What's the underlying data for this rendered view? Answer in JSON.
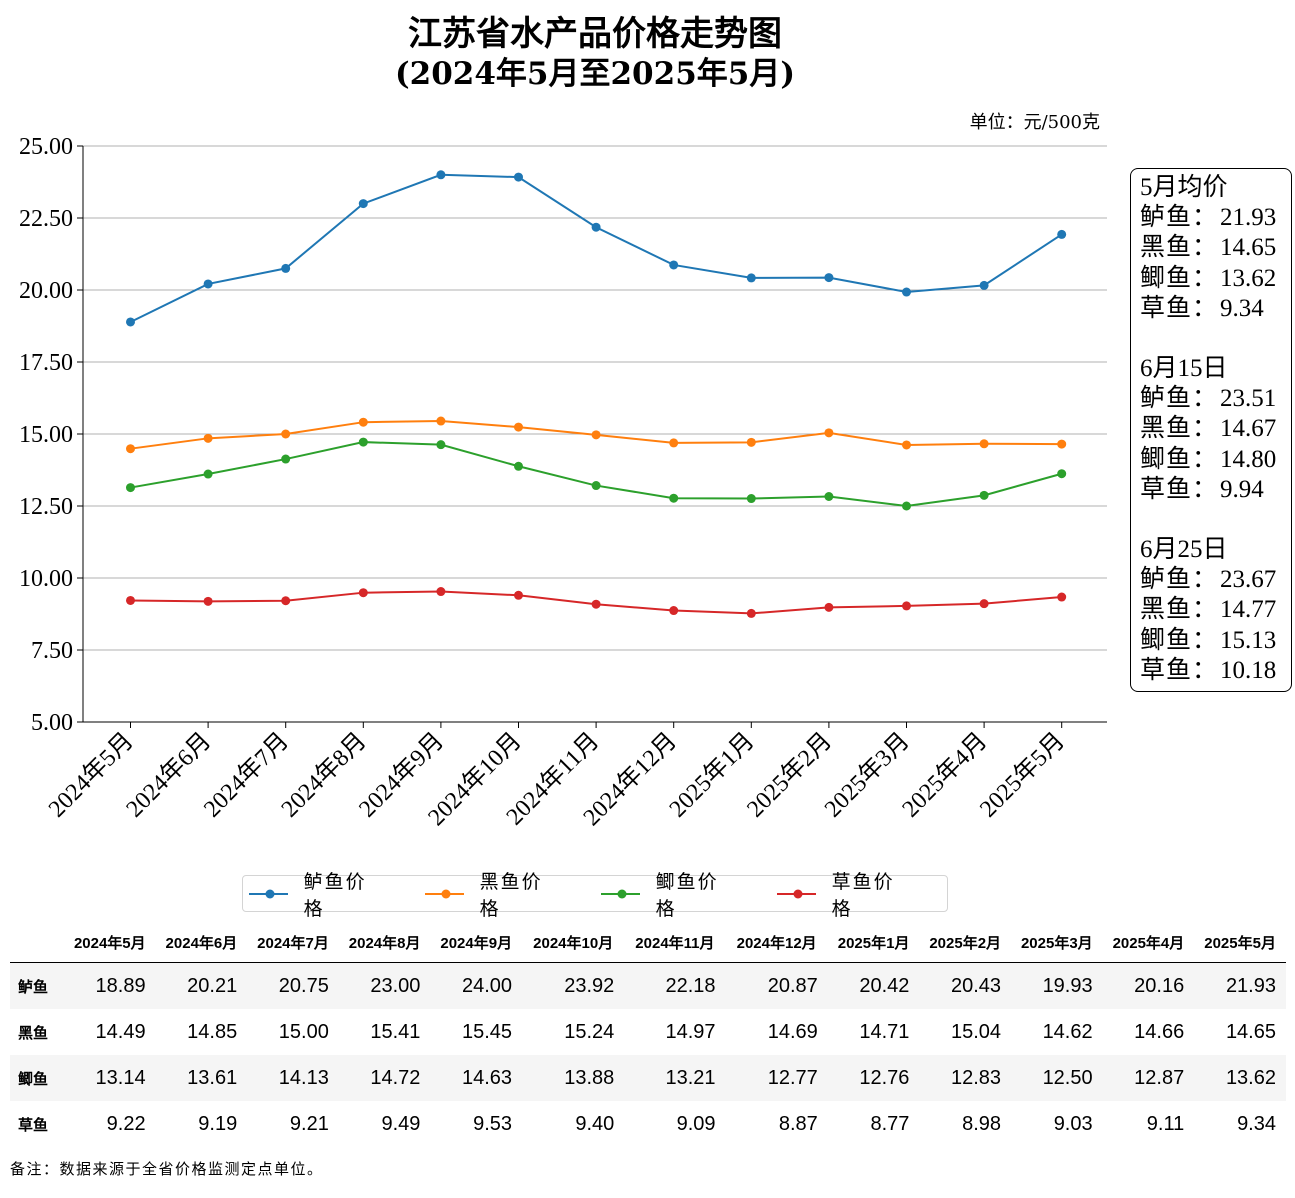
{
  "title": "江苏省水产品价格走势图",
  "subtitle": "(2024年5月至2025年5月)",
  "unit": "单位：元/500克",
  "chart_data": {
    "type": "line",
    "categories": [
      "2024年5月",
      "2024年6月",
      "2024年7月",
      "2024年8月",
      "2024年9月",
      "2024年10月",
      "2024年11月",
      "2024年12月",
      "2025年1月",
      "2025年2月",
      "2025年3月",
      "2025年4月",
      "2025年5月"
    ],
    "ylim": [
      5.0,
      25.0
    ],
    "yticks": [
      "5.00",
      "7.50",
      "10.00",
      "12.50",
      "15.00",
      "17.50",
      "20.00",
      "22.50",
      "25.00"
    ],
    "grid": "horizontal",
    "legend": "bottom-center",
    "series": [
      {
        "name": "鲈鱼价格",
        "color": "#1f77b4",
        "values": [
          18.89,
          20.21,
          20.75,
          23.0,
          24.0,
          23.92,
          22.18,
          20.87,
          20.42,
          20.43,
          19.93,
          20.16,
          21.93
        ]
      },
      {
        "name": "黑鱼价格",
        "color": "#ff7f0e",
        "values": [
          14.49,
          14.85,
          15.0,
          15.41,
          15.45,
          15.24,
          14.97,
          14.69,
          14.71,
          15.04,
          14.62,
          14.66,
          14.65
        ]
      },
      {
        "name": "鲫鱼价格",
        "color": "#2ca02c",
        "values": [
          13.14,
          13.61,
          14.13,
          14.72,
          14.63,
          13.88,
          13.21,
          12.77,
          12.76,
          12.83,
          12.5,
          12.87,
          13.62
        ]
      },
      {
        "name": "草鱼价格",
        "color": "#d62728",
        "values": [
          9.22,
          9.19,
          9.21,
          9.49,
          9.53,
          9.4,
          9.09,
          8.87,
          8.77,
          8.98,
          9.03,
          9.11,
          9.34
        ]
      }
    ]
  },
  "sidebox": {
    "groups": [
      {
        "header": "5月均价",
        "rows": [
          {
            "name": "鲈鱼：",
            "value": "21.93"
          },
          {
            "name": "黑鱼：",
            "value": "14.65"
          },
          {
            "name": "鲫鱼：",
            "value": "13.62"
          },
          {
            "name": "草鱼：",
            "value": "9.34"
          }
        ]
      },
      {
        "header": "6月15日",
        "rows": [
          {
            "name": "鲈鱼：",
            "value": "23.51"
          },
          {
            "name": "黑鱼：",
            "value": "14.67"
          },
          {
            "name": "鲫鱼：",
            "value": "14.80"
          },
          {
            "name": "草鱼：",
            "value": "9.94"
          }
        ]
      },
      {
        "header": "6月25日",
        "rows": [
          {
            "name": "鲈鱼：",
            "value": "23.67"
          },
          {
            "name": "黑鱼：",
            "value": "14.77"
          },
          {
            "name": "鲫鱼：",
            "value": "15.13"
          },
          {
            "name": "草鱼：",
            "value": "10.18"
          }
        ]
      }
    ]
  },
  "table": {
    "columns": [
      "2024年5月",
      "2024年6月",
      "2024年7月",
      "2024年8月",
      "2024年9月",
      "2024年10月",
      "2024年11月",
      "2024年12月",
      "2025年1月",
      "2025年2月",
      "2025年3月",
      "2025年4月",
      "2025年5月"
    ],
    "rows": [
      {
        "name": "鲈鱼",
        "values": [
          "18.89",
          "20.21",
          "20.75",
          "23.00",
          "24.00",
          "23.92",
          "22.18",
          "20.87",
          "20.42",
          "20.43",
          "19.93",
          "20.16",
          "21.93"
        ]
      },
      {
        "name": "黑鱼",
        "values": [
          "14.49",
          "14.85",
          "15.00",
          "15.41",
          "15.45",
          "15.24",
          "14.97",
          "14.69",
          "14.71",
          "15.04",
          "14.62",
          "14.66",
          "14.65"
        ]
      },
      {
        "name": "鲫鱼",
        "values": [
          "13.14",
          "13.61",
          "14.13",
          "14.72",
          "14.63",
          "13.88",
          "13.21",
          "12.77",
          "12.76",
          "12.83",
          "12.50",
          "12.87",
          "13.62"
        ]
      },
      {
        "name": "草鱼",
        "values": [
          "9.22",
          "9.19",
          "9.21",
          "9.49",
          "9.53",
          "9.40",
          "9.09",
          "8.87",
          "8.77",
          "8.98",
          "9.03",
          "9.11",
          "9.34"
        ]
      }
    ]
  },
  "footnote": "备注：数据来源于全省价格监测定点单位。"
}
